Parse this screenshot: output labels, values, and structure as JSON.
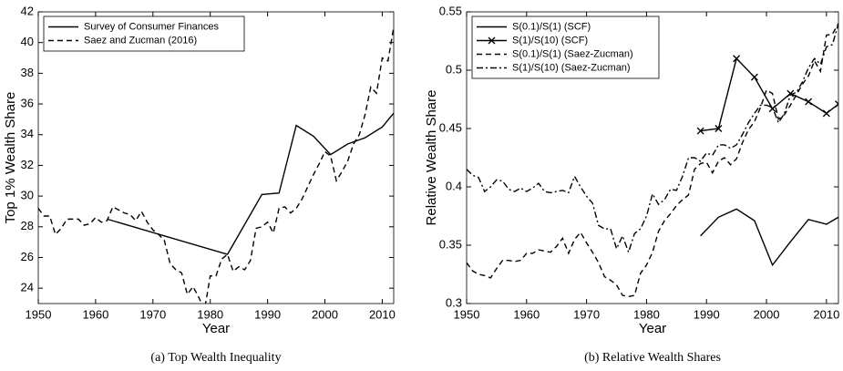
{
  "chart_data": [
    {
      "type": "line",
      "caption": "(a) Top Wealth Inequality",
      "xlabel": "Year",
      "ylabel": "Top 1% Wealth Share",
      "xlim": [
        1950,
        2012
      ],
      "xticks": [
        1950,
        1960,
        1970,
        1980,
        1990,
        2000,
        2010
      ],
      "ylim": [
        23,
        42
      ],
      "yticks": [
        24,
        26,
        28,
        30,
        32,
        34,
        36,
        38,
        40,
        42
      ],
      "legend": "upper left",
      "series": [
        {
          "name": "Survey of Consumer Finances",
          "color": "#000000",
          "style": "solid",
          "x": [
            1962,
            1983,
            1989,
            1992,
            1995,
            1998,
            2001,
            2004,
            2007,
            2010,
            2012
          ],
          "values": [
            28.5,
            26.2,
            30.1,
            30.2,
            34.6,
            33.9,
            32.7,
            33.4,
            33.8,
            34.5,
            35.4
          ]
        },
        {
          "name": "Saez and Zucman (2016)",
          "color": "#000000",
          "style": "dashed",
          "x": [
            1950,
            1951,
            1952,
            1953,
            1954,
            1955,
            1956,
            1957,
            1958,
            1959,
            1960,
            1961,
            1962,
            1963,
            1964,
            1965,
            1966,
            1967,
            1968,
            1969,
            1970,
            1971,
            1972,
            1973,
            1974,
            1975,
            1976,
            1977,
            1978,
            1979,
            1980,
            1981,
            1982,
            1983,
            1984,
            1985,
            1986,
            1987,
            1988,
            1989,
            1990,
            1991,
            1992,
            1993,
            1994,
            1995,
            1996,
            1997,
            1998,
            1999,
            2000,
            2001,
            2002,
            2003,
            2004,
            2005,
            2006,
            2007,
            2008,
            2009,
            2010,
            2011,
            2012
          ],
          "values": [
            29.2,
            28.7,
            28.7,
            27.5,
            27.9,
            28.5,
            28.5,
            28.5,
            28.1,
            28.2,
            28.6,
            28.3,
            28.4,
            29.3,
            29.1,
            28.9,
            28.8,
            28.4,
            29.0,
            28.3,
            27.8,
            27.5,
            27.1,
            25.6,
            25.2,
            25.0,
            23.6,
            24.1,
            23.4,
            22.6,
            24.8,
            24.8,
            25.9,
            26.2,
            25.1,
            25.4,
            25.2,
            25.8,
            27.9,
            28.0,
            28.3,
            27.6,
            29.2,
            29.3,
            28.9,
            29.2,
            29.8,
            30.6,
            31.4,
            32.1,
            32.9,
            32.6,
            31.0,
            31.6,
            32.3,
            33.4,
            34.0,
            35.3,
            37.1,
            36.7,
            39.0,
            38.8,
            41.0
          ]
        }
      ]
    },
    {
      "type": "line",
      "caption": "(b) Relative Wealth Shares",
      "xlabel": "Year",
      "ylabel": "Relative Wealth Share",
      "xlim": [
        1950,
        2012
      ],
      "xticks": [
        1950,
        1960,
        1970,
        1980,
        1990,
        2000,
        2010
      ],
      "ylim": [
        0.3,
        0.55
      ],
      "yticks": [
        0.3,
        0.35,
        0.4,
        0.45,
        0.5,
        0.55
      ],
      "legend": "upper left",
      "series": [
        {
          "name": "S(0.1)/S(1) (SCF)",
          "color": "#000000",
          "style": "solid",
          "x": [
            1989,
            1992,
            1995,
            1998,
            2001,
            2004,
            2007,
            2010,
            2012
          ],
          "values": [
            0.358,
            0.374,
            0.381,
            0.371,
            0.333,
            0.353,
            0.372,
            0.368,
            0.374
          ]
        },
        {
          "name": "S(1)/S(10) (SCF)",
          "color": "#000000",
          "style": "solid",
          "marker": "x",
          "x": [
            1989,
            1992,
            1995,
            1998,
            2001,
            2004,
            2007,
            2010,
            2012
          ],
          "values": [
            0.448,
            0.45,
            0.51,
            0.494,
            0.467,
            0.48,
            0.473,
            0.463,
            0.471
          ]
        },
        {
          "name": "S(0.1)/S(1) (Saez-Zucman)",
          "color": "#000000",
          "style": "dashed",
          "x": [
            1950,
            1951,
            1952,
            1953,
            1954,
            1955,
            1956,
            1957,
            1958,
            1959,
            1960,
            1961,
            1962,
            1963,
            1964,
            1965,
            1966,
            1967,
            1968,
            1969,
            1970,
            1971,
            1972,
            1973,
            1974,
            1975,
            1976,
            1977,
            1978,
            1979,
            1980,
            1981,
            1982,
            1983,
            1984,
            1985,
            1986,
            1987,
            1988,
            1989,
            1990,
            1991,
            1992,
            1993,
            1994,
            1995,
            1996,
            1997,
            1998,
            1999,
            2000,
            2001,
            2002,
            2003,
            2004,
            2005,
            2006,
            2007,
            2008,
            2009,
            2010,
            2011,
            2012
          ],
          "values": [
            0.335,
            0.328,
            0.325,
            0.324,
            0.322,
            0.33,
            0.337,
            0.337,
            0.336,
            0.337,
            0.343,
            0.343,
            0.346,
            0.345,
            0.344,
            0.349,
            0.356,
            0.343,
            0.355,
            0.361,
            0.352,
            0.344,
            0.335,
            0.323,
            0.32,
            0.316,
            0.307,
            0.306,
            0.307,
            0.326,
            0.333,
            0.344,
            0.362,
            0.371,
            0.377,
            0.384,
            0.389,
            0.393,
            0.415,
            0.42,
            0.421,
            0.412,
            0.422,
            0.425,
            0.419,
            0.424,
            0.438,
            0.449,
            0.456,
            0.468,
            0.483,
            0.48,
            0.458,
            0.462,
            0.47,
            0.479,
            0.488,
            0.495,
            0.508,
            0.499,
            0.53,
            0.531,
            0.54
          ]
        },
        {
          "name": "S(1)/S(10) (Saez-Zucman)",
          "color": "#000000",
          "style": "dashdot",
          "x": [
            1950,
            1951,
            1952,
            1953,
            1954,
            1955,
            1956,
            1957,
            1958,
            1959,
            1960,
            1961,
            1962,
            1963,
            1964,
            1965,
            1966,
            1967,
            1968,
            1969,
            1970,
            1971,
            1972,
            1973,
            1974,
            1975,
            1976,
            1977,
            1978,
            1979,
            1980,
            1981,
            1982,
            1983,
            1984,
            1985,
            1986,
            1987,
            1988,
            1989,
            1990,
            1991,
            1992,
            1993,
            1994,
            1995,
            1996,
            1997,
            1998,
            1999,
            2000,
            2001,
            2002,
            2003,
            2004,
            2005,
            2006,
            2007,
            2008,
            2009,
            2010,
            2011,
            2012
          ],
          "values": [
            0.415,
            0.41,
            0.408,
            0.396,
            0.4,
            0.406,
            0.405,
            0.398,
            0.396,
            0.399,
            0.396,
            0.399,
            0.403,
            0.396,
            0.395,
            0.396,
            0.397,
            0.395,
            0.409,
            0.4,
            0.392,
            0.386,
            0.367,
            0.364,
            0.364,
            0.347,
            0.358,
            0.344,
            0.36,
            0.364,
            0.375,
            0.394,
            0.385,
            0.389,
            0.398,
            0.397,
            0.409,
            0.425,
            0.425,
            0.422,
            0.429,
            0.427,
            0.436,
            0.436,
            0.433,
            0.436,
            0.445,
            0.455,
            0.463,
            0.47,
            0.47,
            0.468,
            0.455,
            0.463,
            0.479,
            0.481,
            0.49,
            0.502,
            0.51,
            0.505,
            0.52,
            0.522,
            0.54
          ]
        }
      ]
    }
  ]
}
